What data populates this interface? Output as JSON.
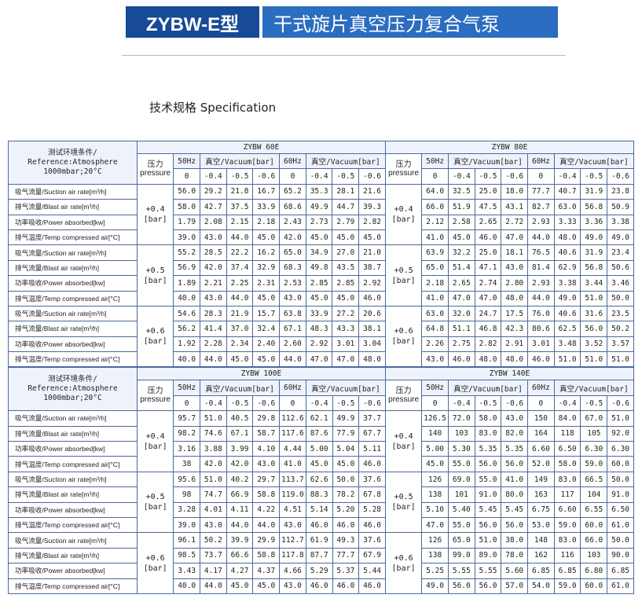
{
  "header": {
    "model": "ZYBW-E型",
    "title": "干式旋片真空压力复合气泵"
  },
  "section_title": "技术规格 Specification",
  "table": {
    "condition": [
      "测试环境条件/",
      "Reference:Atmosphere",
      "1000mbar;20°C"
    ],
    "pressure_label": [
      "压力",
      "pressure"
    ],
    "freq": [
      "50Hz",
      "60Hz"
    ],
    "vacuum": "真空/Vacuum[bar]",
    "vacuum_levels": [
      "0",
      "-0.4",
      "-0.5",
      "-0.6",
      "0",
      "-0.4",
      "-0.5",
      "-0.6"
    ],
    "row_labels": [
      "吸气流量/Suction air rate[m³/h]",
      "排气流量/Blast air rate[m³/h]",
      "功率吸收/Power absorbed[kw]",
      "排气温度/Temp compressed air[°C]"
    ],
    "pressures": [
      "+0.4",
      "+0.5",
      "+0.6"
    ],
    "pressure_unit": "[bar]",
    "models": [
      {
        "name": "ZYBW 60E",
        "groups": [
          [
            [
              "56.0",
              "29.2",
              "21.8",
              "16.7",
              "65.2",
              "35.3",
              "28.1",
              "21.6"
            ],
            [
              "58.0",
              "42.7",
              "37.5",
              "33.9",
              "68.6",
              "49.9",
              "44.7",
              "39.3"
            ],
            [
              "1.79",
              "2.08",
              "2.15",
              "2.18",
              "2.43",
              "2.73",
              "2.79",
              "2.82"
            ],
            [
              "39.0",
              "43.0",
              "44.0",
              "45.0",
              "42.0",
              "45.0",
              "45.0",
              "45.0"
            ]
          ],
          [
            [
              "55.2",
              "28.5",
              "22.2",
              "16.2",
              "65.0",
              "34.9",
              "27.0",
              "21.0"
            ],
            [
              "56.9",
              "42.0",
              "37.4",
              "32.9",
              "68.3",
              "49.8",
              "43.5",
              "38.7"
            ],
            [
              "1.89",
              "2.21",
              "2.25",
              "2.31",
              "2.53",
              "2.85",
              "2.85",
              "2.92"
            ],
            [
              "40.0",
              "43.0",
              "44.0",
              "45.0",
              "43.0",
              "45.0",
              "45.0",
              "46.0"
            ]
          ],
          [
            [
              "54.6",
              "28.3",
              "21.9",
              "15.7",
              "63.8",
              "33.9",
              "27.2",
              "20.6"
            ],
            [
              "56.2",
              "41.4",
              "37.0",
              "32.4",
              "67.1",
              "48.3",
              "43.3",
              "38.1"
            ],
            [
              "1.92",
              "2.28",
              "2.34",
              "2.40",
              "2.60",
              "2.92",
              "3.01",
              "3.04"
            ],
            [
              "40.0",
              "44.0",
              "45.0",
              "45.0",
              "44.0",
              "47.0",
              "47.0",
              "48.0"
            ]
          ]
        ]
      },
      {
        "name": "ZYBW 80E",
        "groups": [
          [
            [
              "64.0",
              "32.5",
              "25.0",
              "18.0",
              "77.7",
              "40.7",
              "31.9",
              "23.8"
            ],
            [
              "66.0",
              "51.9",
              "47.5",
              "43.1",
              "82.7",
              "63.0",
              "56.8",
              "50.9"
            ],
            [
              "2.12",
              "2.58",
              "2.65",
              "2.72",
              "2.93",
              "3.33",
              "3.36",
              "3.38"
            ],
            [
              "41.0",
              "45.0",
              "46.0",
              "47.0",
              "44.0",
              "48.0",
              "49.0",
              "49.0"
            ]
          ],
          [
            [
              "63.9",
              "32.2",
              "25.0",
              "18.1",
              "76.5",
              "40.6",
              "31.9",
              "23.4"
            ],
            [
              "65.0",
              "51.4",
              "47.1",
              "43.0",
              "81.4",
              "62.9",
              "56.8",
              "50.6"
            ],
            [
              "2.18",
              "2.65",
              "2.74",
              "2.80",
              "2.93",
              "3.38",
              "3.44",
              "3.46"
            ],
            [
              "41.0",
              "47.0",
              "47.0",
              "48.0",
              "44.0",
              "49.0",
              "51.0",
              "50.0"
            ]
          ],
          [
            [
              "63.0",
              "32.0",
              "24.7",
              "17.5",
              "76.0",
              "40.6",
              "31.6",
              "23.5"
            ],
            [
              "64.8",
              "51.1",
              "46.8",
              "42.3",
              "80.6",
              "62.5",
              "56.0",
              "50.2"
            ],
            [
              "2.26",
              "2.75",
              "2.82",
              "2.91",
              "3.01",
              "3.48",
              "3.52",
              "3.57"
            ],
            [
              "43.0",
              "46.0",
              "48.0",
              "48.0",
              "46.0",
              "51.0",
              "51.0",
              "51.0"
            ]
          ]
        ]
      },
      {
        "name": "ZYBW 100E",
        "groups": [
          [
            [
              "95.7",
              "51.0",
              "40.5",
              "29.8",
              "112.6",
              "62.1",
              "49.9",
              "37.7"
            ],
            [
              "98.2",
              "74.6",
              "67.1",
              "58.7",
              "117.6",
              "87.6",
              "77.9",
              "67.7"
            ],
            [
              "3.16",
              "3.88",
              "3.99",
              "4.10",
              "4.44",
              "5.00",
              "5.04",
              "5.11"
            ],
            [
              "38",
              "42.0",
              "42.0",
              "43.0",
              "41.0",
              "45.0",
              "45.0",
              "46.0"
            ]
          ],
          [
            [
              "95.6",
              "51.0",
              "40.2",
              "29.7",
              "113.7",
              "62.6",
              "50.0",
              "37.6"
            ],
            [
              "98",
              "74.7",
              "66.9",
              "58.8",
              "119.0",
              "88.3",
              "78.2",
              "67.8"
            ],
            [
              "3.28",
              "4.01",
              "4.11",
              "4.22",
              "4.51",
              "5.14",
              "5.20",
              "5.28"
            ],
            [
              "39.0",
              "43.0",
              "44.0",
              "44.0",
              "43.0",
              "46.0",
              "46.0",
              "46.0"
            ]
          ],
          [
            [
              "96.1",
              "50.2",
              "39.9",
              "29.9",
              "112.7",
              "61.9",
              "49.3",
              "37.6"
            ],
            [
              "98.5",
              "73.7",
              "66.6",
              "58.8",
              "117.8",
              "87.7",
              "77.7",
              "67.9"
            ],
            [
              "3.43",
              "4.17",
              "4.27",
              "4.37",
              "4.66",
              "5.29",
              "5.37",
              "5.44"
            ],
            [
              "40.0",
              "44.0",
              "45.0",
              "45.0",
              "43.0",
              "46.0",
              "46.0",
              "46.0"
            ]
          ]
        ]
      },
      {
        "name": "ZYBW 140E",
        "groups": [
          [
            [
              "126.5",
              "72.0",
              "58.0",
              "43.0",
              "150",
              "84.0",
              "67.0",
              "51.0"
            ],
            [
              "140",
              "103",
              "83.0",
              "82.0",
              "164",
              "118",
              "105",
              "92.0"
            ],
            [
              "5.00",
              "5.30",
              "5.35",
              "5.35",
              "6.60",
              "6.50",
              "6.30",
              "6.30"
            ],
            [
              "45.0",
              "55.0",
              "56.0",
              "56.0",
              "52.0",
              "58.0",
              "59.0",
              "60.0"
            ]
          ],
          [
            [
              "126",
              "69.0",
              "55.0",
              "41.0",
              "149",
              "83.0",
              "66.5",
              "50.0"
            ],
            [
              "138",
              "101",
              "91.0",
              "80.0",
              "163",
              "117",
              "104",
              "91.0"
            ],
            [
              "5.10",
              "5.40",
              "5.45",
              "5.45",
              "6.75",
              "6.60",
              "6.55",
              "6.50"
            ],
            [
              "47.0",
              "55.0",
              "56.0",
              "56.0",
              "53.0",
              "59.0",
              "60.0",
              "61.0"
            ]
          ],
          [
            [
              "126",
              "65.0",
              "51.0",
              "38.0",
              "148",
              "83.0",
              "66.0",
              "50.0"
            ],
            [
              "138",
              "99.0",
              "89.0",
              "78.0",
              "162",
              "116",
              "103",
              "90.0"
            ],
            [
              "5.25",
              "5.55",
              "5.55",
              "5.60",
              "6.85",
              "6.85",
              "6.80",
              "6.85"
            ],
            [
              "49.0",
              "56.0",
              "56.0",
              "57.0",
              "54.0",
              "59.0",
              "60.0",
              "61.0"
            ]
          ]
        ]
      }
    ]
  }
}
